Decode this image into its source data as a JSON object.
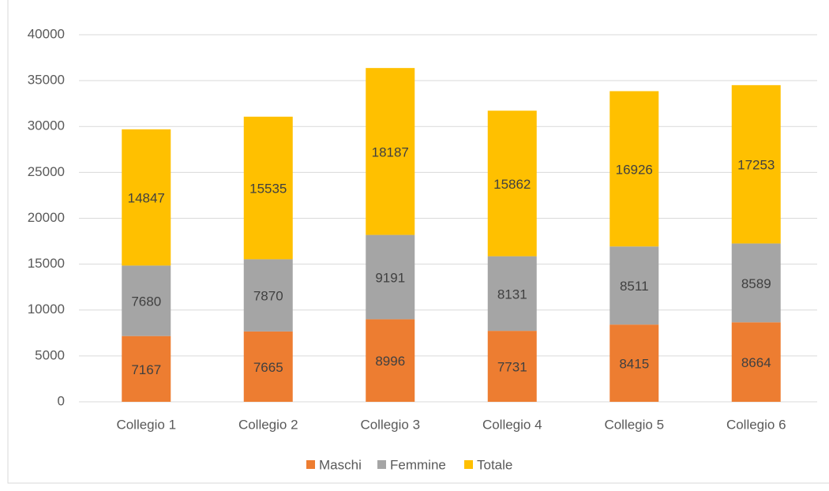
{
  "chart_data": {
    "type": "stacked_bar",
    "categories": [
      "Collegio 1",
      "Collegio 2",
      "Collegio 3",
      "Collegio 4",
      "Collegio 5",
      "Collegio 6"
    ],
    "series": [
      {
        "name": "Maschi",
        "color": "#ed7d31",
        "values": [
          7167,
          7665,
          8996,
          7731,
          8415,
          8664
        ]
      },
      {
        "name": "Femmine",
        "color": "#a5a5a5",
        "values": [
          7680,
          7870,
          9191,
          8131,
          8511,
          8589
        ]
      },
      {
        "name": "Totale",
        "color": "#ffc000",
        "values": [
          14847,
          15535,
          18187,
          15862,
          16926,
          17253
        ]
      }
    ],
    "ylim": [
      0,
      40000
    ],
    "yticks": [
      0,
      5000,
      10000,
      15000,
      20000,
      25000,
      30000,
      35000,
      40000
    ],
    "grid": true,
    "legend": "bottom"
  }
}
